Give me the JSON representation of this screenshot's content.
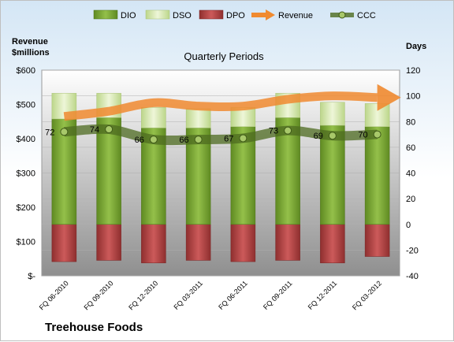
{
  "chart_data": {
    "type": "bar",
    "title": "Quarterly Periods",
    "company": "Treehouse Foods",
    "ylabel_left": "Revenue $millions",
    "ylabel_right": "Days",
    "categories": [
      "FQ 06-2010",
      "FQ 09-2010",
      "FQ 12-2010",
      "FQ 03-2011",
      "FQ 06-2011",
      "FQ 09-2011",
      "FQ 12-2011",
      "FQ 03-2012"
    ],
    "left_axis": {
      "min": 0,
      "max": 600,
      "step": 100,
      "tick_labels": [
        "$-",
        "$100",
        "$200",
        "$300",
        "$400",
        "$500",
        "$600"
      ]
    },
    "right_axis": {
      "min": -40,
      "max": 120,
      "step": 20,
      "tick_labels": [
        "-40",
        "-20",
        "0",
        "20",
        "40",
        "60",
        "80",
        "100",
        "120"
      ]
    },
    "series": [
      {
        "name": "DIO",
        "axis": "right",
        "kind": "bar",
        "color": "#7ea836",
        "values": [
          82,
          83,
          75,
          75,
          76,
          83,
          77,
          76
        ]
      },
      {
        "name": "DSO",
        "axis": "right",
        "kind": "bar_stacked",
        "color": "#d8e8b0",
        "values": [
          20,
          19,
          16,
          15,
          15,
          19,
          18,
          18
        ]
      },
      {
        "name": "DPO",
        "axis": "right",
        "kind": "bar_negative",
        "color": "#b84a4a",
        "values": [
          -29,
          -28,
          -30,
          -28,
          -29,
          -28,
          -30,
          -25
        ]
      },
      {
        "name": "Revenue",
        "axis": "left",
        "kind": "line",
        "color": "#f08a30",
        "values": [
          465,
          480,
          505,
          495,
          495,
          515,
          525,
          520
        ]
      },
      {
        "name": "CCC",
        "axis": "right",
        "kind": "line",
        "color": "#6b8a35",
        "values": [
          72,
          74,
          66,
          66,
          67,
          73,
          69,
          70
        ]
      }
    ],
    "ccc_labels": [
      "72",
      "74",
      "66",
      "66",
      "67",
      "73",
      "69",
      "70"
    ],
    "legend_position": "top"
  }
}
